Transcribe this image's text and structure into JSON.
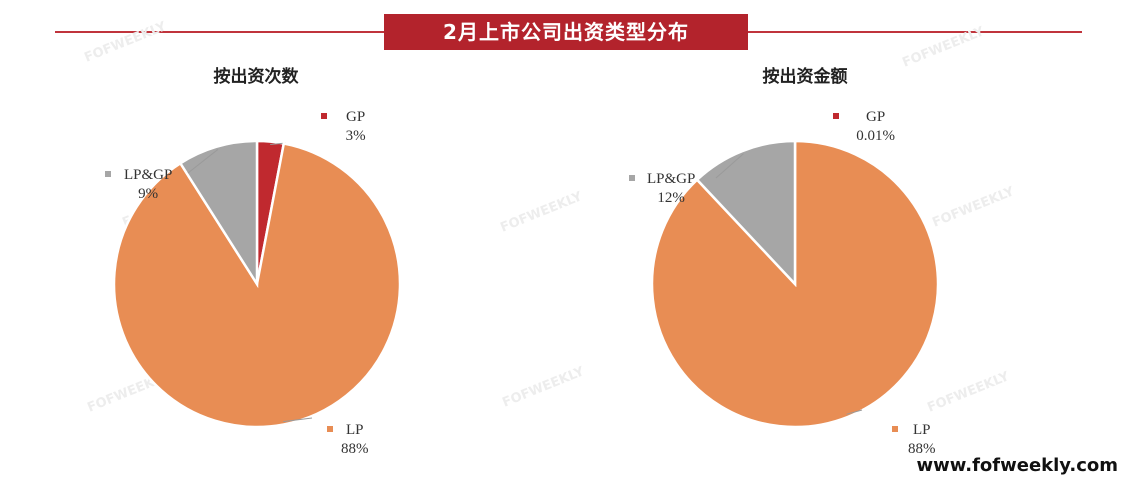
{
  "header": {
    "title": "2月上市公司出资类型分布"
  },
  "watermark": "FOFWEEKLY",
  "footer": {
    "url": "www.fofweekly.com"
  },
  "colors": {
    "banner": "#b3232c",
    "GP": "#c0292f",
    "LP": "#e88d54",
    "LP&GP": "#a6a6a6"
  },
  "chart_data": [
    {
      "type": "pie",
      "title": "按出资次数",
      "slices": [
        {
          "label": "GP",
          "value": 3,
          "display": "3%"
        },
        {
          "label": "LP",
          "value": 88,
          "display": "88%"
        },
        {
          "label": "LP&GP",
          "value": 9,
          "display": "9%"
        }
      ]
    },
    {
      "type": "pie",
      "title": "按出资金额",
      "slices": [
        {
          "label": "GP",
          "value": 0.01,
          "display": "0.01%"
        },
        {
          "label": "LP",
          "value": 88,
          "display": "88%"
        },
        {
          "label": "LP&GP",
          "value": 12,
          "display": "12%"
        }
      ]
    }
  ]
}
